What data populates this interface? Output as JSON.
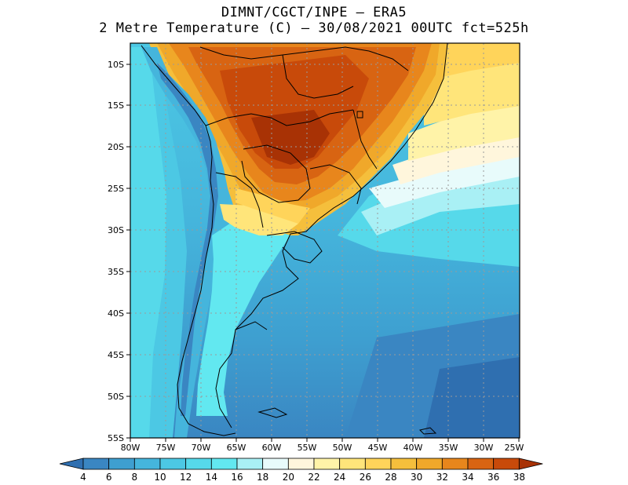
{
  "title": {
    "line1": "DIMNT/CGCT/INPE –  ERA5",
    "line2": "2 Metre Temperature (C) –  30/08/2021 00UTC fct=525h"
  },
  "map": {
    "lon_range": [
      -80,
      -25
    ],
    "lat_range": [
      -55,
      -7
    ],
    "grid_step": 5,
    "x_ticks": [
      "80W",
      "75W",
      "70W",
      "65W",
      "60W",
      "55W",
      "50W",
      "45W",
      "40W",
      "35W",
      "30W",
      "25W"
    ],
    "y_ticks": [
      "10S",
      "15S",
      "20S",
      "25S",
      "30S",
      "35S",
      "40S",
      "45S",
      "50S",
      "55S"
    ]
  },
  "colorbar": {
    "labels": [
      "4",
      "6",
      "8",
      "10",
      "12",
      "14",
      "16",
      "18",
      "20",
      "22",
      "24",
      "26",
      "28",
      "30",
      "32",
      "34",
      "36",
      "38"
    ],
    "colors": [
      "#2f6fb0",
      "#3a86c2",
      "#3e9fd0",
      "#45b5dc",
      "#4cc8e4",
      "#56d9ea",
      "#62e8f0",
      "#a9f0f5",
      "#e8fbfb",
      "#fff6dc",
      "#fff3a8",
      "#ffe57a",
      "#ffd45a",
      "#f5bf3c",
      "#f0a82a",
      "#e8861c",
      "#d86412",
      "#c84a0a",
      "#a83205"
    ]
  }
}
